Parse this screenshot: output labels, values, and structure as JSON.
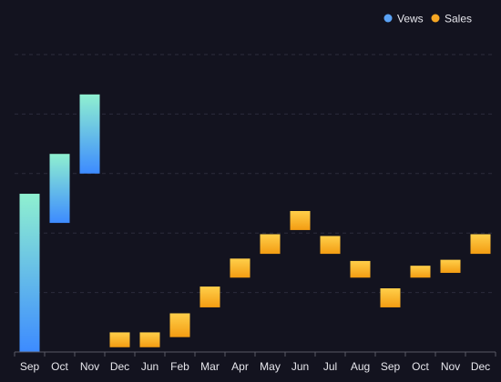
{
  "chart_data": {
    "type": "bar",
    "subtype": "waterfall",
    "categories": [
      "Sep",
      "Oct",
      "Nov",
      "Dec",
      "Jun",
      "Feb",
      "Mar",
      "Apr",
      "May",
      "Jun",
      "Jul",
      "Aug",
      "Sep",
      "Oct",
      "Nov",
      "Dec"
    ],
    "series": [
      {
        "name": "Vews",
        "color": "#5aa2f5",
        "gradient": [
          "#8ff0d0",
          "#3d8bff"
        ],
        "segments": [
          {
            "index": 0,
            "low": 0,
            "high": 266
          },
          {
            "index": 1,
            "low": 217,
            "high": 333
          },
          {
            "index": 2,
            "low": 300,
            "high": 433
          }
        ]
      },
      {
        "name": "Sales",
        "color": "#f5a623",
        "gradient": [
          "#ffcf4a",
          "#f39c12"
        ],
        "segments": [
          {
            "index": 3,
            "low": 8,
            "high": 33
          },
          {
            "index": 4,
            "low": 8,
            "high": 33
          },
          {
            "index": 5,
            "low": 25,
            "high": 65
          },
          {
            "index": 6,
            "low": 75,
            "high": 110
          },
          {
            "index": 7,
            "low": 125,
            "high": 157
          },
          {
            "index": 8,
            "low": 165,
            "high": 198
          },
          {
            "index": 9,
            "low": 205,
            "high": 237
          },
          {
            "index": 10,
            "low": 165,
            "high": 195
          },
          {
            "index": 11,
            "low": 125,
            "high": 153
          },
          {
            "index": 12,
            "low": 75,
            "high": 107
          },
          {
            "index": 13,
            "low": 125,
            "high": 145
          },
          {
            "index": 14,
            "low": 133,
            "high": 155
          },
          {
            "index": 15,
            "low": 165,
            "high": 198
          }
        ]
      }
    ],
    "ylim": [
      0,
      500
    ],
    "grid": true,
    "legend_position": "top-right",
    "title": "",
    "xlabel": "",
    "ylabel": ""
  }
}
